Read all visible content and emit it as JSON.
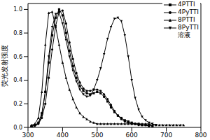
{
  "chart_data": {
    "type": "line",
    "y_label": "荧光发射强度",
    "annotation": "溶液",
    "legend": "upper right",
    "grid": false,
    "x": [
      310,
      320,
      330,
      340,
      350,
      360,
      370,
      380,
      390,
      400,
      410,
      420,
      430,
      440,
      450,
      460,
      470,
      480,
      490,
      500,
      510,
      520,
      530,
      540,
      550,
      560,
      570,
      580,
      590,
      600,
      610,
      620,
      630,
      640,
      650,
      660,
      670,
      680,
      690,
      700,
      710,
      720,
      730,
      740,
      750
    ],
    "xlim": [
      300,
      800
    ],
    "xticks": [
      300,
      400,
      500,
      600,
      700,
      800
    ],
    "ylim": [
      0,
      1.05
    ],
    "yticks": [
      {
        "value": 0,
        "label": "0.0"
      },
      0.2,
      0.4,
      0.6,
      0.8,
      {
        "value": 1,
        "label": "1.0"
      }
    ],
    "series": [
      {
        "name": "4PTTI",
        "color": "#000000",
        "marker": "square",
        "values": [
          0.01,
          0.02,
          0.04,
          0.12,
          0.3,
          0.55,
          0.78,
          0.93,
          1.0,
          0.95,
          0.8,
          0.65,
          0.52,
          0.42,
          0.35,
          0.31,
          0.29,
          0.28,
          0.29,
          0.3,
          0.29,
          0.26,
          0.22,
          0.17,
          0.13,
          0.1,
          0.08,
          0.06,
          0.05,
          0.04,
          0.03,
          0.03,
          0.02,
          0.02,
          0.02,
          0.01,
          null,
          null,
          null,
          null,
          null,
          null,
          null,
          null,
          null
        ]
      },
      {
        "name": "4PyTTI",
        "color": "#000000",
        "marker": "circle",
        "values": [
          0.01,
          0.02,
          0.03,
          0.08,
          0.2,
          0.42,
          0.66,
          0.86,
          0.98,
          0.99,
          0.88,
          0.72,
          0.58,
          0.46,
          0.38,
          0.33,
          0.31,
          0.31,
          0.32,
          0.32,
          0.31,
          0.28,
          0.24,
          0.19,
          0.14,
          0.1,
          0.07,
          0.05,
          0.04,
          0.03,
          0.03,
          0.02,
          0.02,
          0.02,
          0.01,
          null,
          null,
          null,
          null,
          null,
          null,
          null,
          null,
          null,
          null
        ]
      },
      {
        "name": "8PTTI",
        "color": "#000000",
        "marker": "triangle",
        "values": [
          0.02,
          0.03,
          0.08,
          0.3,
          0.7,
          0.97,
          0.98,
          0.85,
          0.7,
          0.55,
          0.42,
          0.32,
          0.24,
          0.17,
          0.12,
          0.09,
          0.07,
          0.05,
          0.04,
          0.03,
          0.03,
          0.03,
          0.03,
          0.03,
          0.03,
          0.03,
          0.03,
          0.03,
          0.03,
          0.03,
          0.03,
          0.03,
          0.03,
          0.03,
          0.03,
          0.02,
          0.02,
          0.02,
          0.02,
          0.02,
          0.02,
          0.02,
          0.02,
          0.02,
          0.02
        ]
      },
      {
        "name": "8PyTTI",
        "color": "#000000",
        "marker": "triangle-down",
        "values": [
          0.0,
          0.01,
          0.03,
          0.1,
          0.3,
          0.6,
          0.85,
          0.96,
          0.97,
          0.88,
          0.74,
          0.6,
          0.48,
          0.39,
          0.32,
          0.28,
          0.26,
          0.27,
          0.32,
          0.4,
          0.5,
          0.62,
          0.75,
          0.85,
          0.92,
          0.93,
          0.9,
          0.78,
          0.6,
          0.4,
          0.25,
          0.15,
          0.09,
          0.06,
          0.04,
          0.03,
          0.02,
          null,
          null,
          null,
          null,
          null,
          null,
          null,
          null
        ]
      }
    ]
  }
}
